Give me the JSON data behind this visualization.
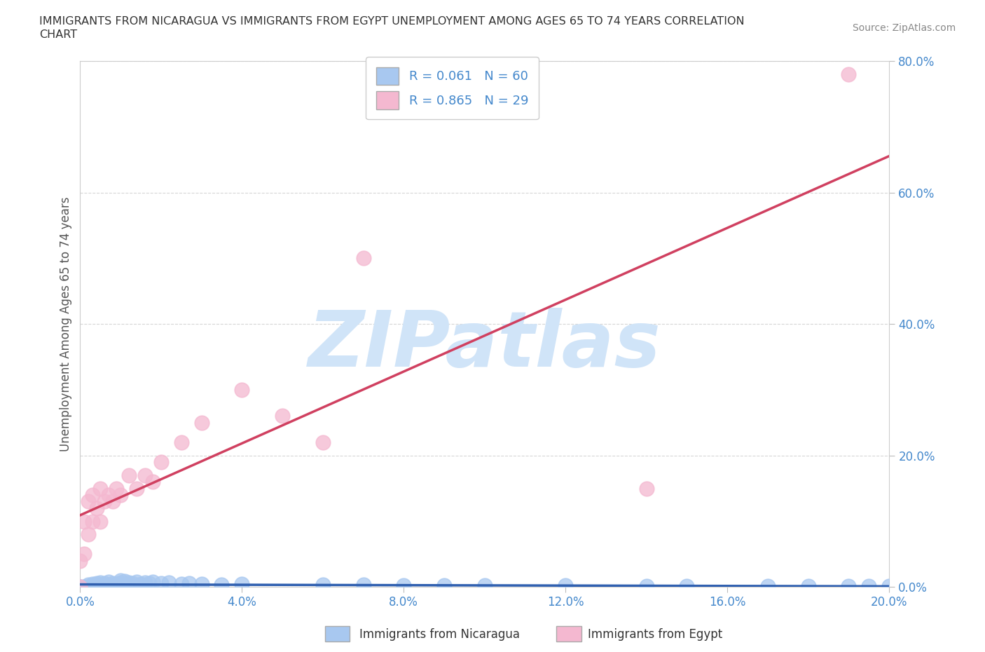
{
  "title_line1": "IMMIGRANTS FROM NICARAGUA VS IMMIGRANTS FROM EGYPT UNEMPLOYMENT AMONG AGES 65 TO 74 YEARS CORRELATION",
  "title_line2": "CHART",
  "source": "Source: ZipAtlas.com",
  "ylabel": "Unemployment Among Ages 65 to 74 years",
  "xlim": [
    0.0,
    0.2
  ],
  "ylim": [
    0.0,
    0.8
  ],
  "xticks": [
    0.0,
    0.04,
    0.08,
    0.12,
    0.16,
    0.2
  ],
  "yticks": [
    0.0,
    0.2,
    0.4,
    0.6,
    0.8
  ],
  "xtick_labels": [
    "0.0%",
    "4.0%",
    "8.0%",
    "12.0%",
    "16.0%",
    "20.0%"
  ],
  "ytick_labels": [
    "0.0%",
    "20.0%",
    "40.0%",
    "60.0%",
    "80.0%"
  ],
  "nicaragua_color": "#a8c8f0",
  "egypt_color": "#f4b8d0",
  "nicaragua_line_color": "#3060b0",
  "egypt_line_color": "#d04060",
  "watermark": "ZIPatlas",
  "watermark_color": "#d0e4f8",
  "legend_nicaragua": "R = 0.061   N = 60",
  "legend_egypt": "R = 0.865   N = 29",
  "tick_color": "#4488cc",
  "nicaragua_x": [
    0.0,
    0.0,
    0.001,
    0.001,
    0.002,
    0.002,
    0.002,
    0.003,
    0.003,
    0.003,
    0.003,
    0.004,
    0.004,
    0.004,
    0.005,
    0.005,
    0.005,
    0.005,
    0.006,
    0.006,
    0.006,
    0.007,
    0.007,
    0.007,
    0.008,
    0.008,
    0.009,
    0.009,
    0.01,
    0.01,
    0.01,
    0.011,
    0.011,
    0.012,
    0.013,
    0.014,
    0.015,
    0.016,
    0.017,
    0.018,
    0.02,
    0.022,
    0.025,
    0.027,
    0.03,
    0.035,
    0.04,
    0.06,
    0.07,
    0.08,
    0.09,
    0.1,
    0.12,
    0.14,
    0.15,
    0.17,
    0.18,
    0.19,
    0.195,
    0.2
  ],
  "nicaragua_y": [
    0.0,
    0.0,
    0.0,
    0.0,
    0.0,
    0.0,
    0.003,
    0.0,
    0.0,
    0.002,
    0.005,
    0.0,
    0.003,
    0.006,
    0.0,
    0.002,
    0.004,
    0.007,
    0.0,
    0.003,
    0.006,
    0.0,
    0.004,
    0.008,
    0.002,
    0.006,
    0.0,
    0.005,
    0.003,
    0.007,
    0.01,
    0.005,
    0.009,
    0.007,
    0.006,
    0.008,
    0.005,
    0.007,
    0.006,
    0.008,
    0.006,
    0.007,
    0.005,
    0.006,
    0.005,
    0.004,
    0.005,
    0.003,
    0.003,
    0.002,
    0.002,
    0.002,
    0.002,
    0.001,
    0.001,
    0.001,
    0.001,
    0.001,
    0.001,
    0.001
  ],
  "egypt_x": [
    0.0,
    0.0,
    0.001,
    0.001,
    0.002,
    0.002,
    0.003,
    0.003,
    0.004,
    0.005,
    0.005,
    0.006,
    0.007,
    0.008,
    0.009,
    0.01,
    0.012,
    0.014,
    0.016,
    0.018,
    0.02,
    0.025,
    0.03,
    0.04,
    0.05,
    0.06,
    0.07,
    0.14,
    0.19
  ],
  "egypt_y": [
    0.0,
    0.04,
    0.05,
    0.1,
    0.08,
    0.13,
    0.1,
    0.14,
    0.12,
    0.1,
    0.15,
    0.13,
    0.14,
    0.13,
    0.15,
    0.14,
    0.17,
    0.15,
    0.17,
    0.16,
    0.19,
    0.22,
    0.25,
    0.3,
    0.26,
    0.22,
    0.5,
    0.15,
    0.78
  ]
}
